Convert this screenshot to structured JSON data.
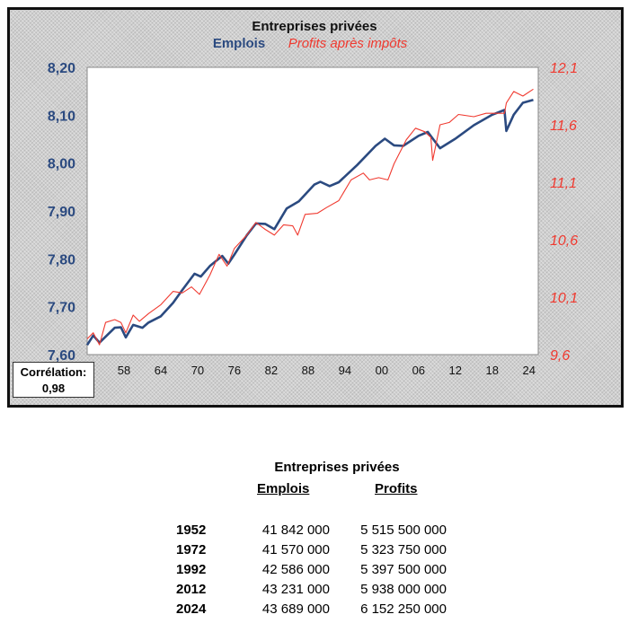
{
  "chart_data": {
    "type": "line",
    "title": "Entreprises privées",
    "legend": [
      "Emplois",
      "Profits après impôts"
    ],
    "colors": {
      "emplois": "#2b4a80",
      "profits": "#f03a30"
    },
    "x_ticks": [
      "58",
      "64",
      "70",
      "76",
      "82",
      "88",
      "94",
      "00",
      "06",
      "12",
      "18",
      "24"
    ],
    "x_tick_years": [
      1958,
      1964,
      1970,
      1976,
      1982,
      1988,
      1994,
      2000,
      2006,
      2012,
      2018,
      2024
    ],
    "xlim": [
      1952,
      2025.5
    ],
    "y_left": {
      "ticks": [
        "8,20",
        "8,10",
        "8,00",
        "7,90",
        "7,80",
        "7,70",
        "7,60"
      ],
      "values": [
        8.2,
        8.1,
        8.0,
        7.9,
        7.8,
        7.7,
        7.6
      ],
      "ylim": [
        7.6,
        8.2
      ]
    },
    "y_right": {
      "ticks": [
        "12,1",
        "11,6",
        "11,1",
        "10,6",
        "10,1",
        "9,6"
      ],
      "values": [
        12.1,
        11.6,
        11.1,
        10.6,
        10.1,
        9.6
      ],
      "ylim": [
        9.6,
        12.1
      ]
    },
    "series": [
      {
        "name": "Emplois",
        "axis": "left",
        "x": [
          1952,
          1953,
          1954,
          1956.5,
          1957.5,
          1958.3,
          1959.5,
          1961,
          1962,
          1964,
          1966,
          1967.5,
          1969.5,
          1970.5,
          1972,
          1974,
          1975,
          1976,
          1978,
          1979.5,
          1981,
          1982.5,
          1984.5,
          1986.5,
          1989,
          1990,
          1991.5,
          1993,
          1996,
          1999,
          2000.5,
          2002,
          2003.5,
          2006,
          2007.5,
          2008.5,
          2009.5,
          2012,
          2015,
          2018,
          2020,
          2020.3,
          2021.5,
          2023,
          2024.7
        ],
        "y": [
          7.62,
          7.64,
          7.625,
          7.656,
          7.657,
          7.636,
          7.662,
          7.656,
          7.667,
          7.68,
          7.708,
          7.735,
          7.769,
          7.763,
          7.785,
          7.806,
          7.79,
          7.809,
          7.849,
          7.874,
          7.873,
          7.862,
          7.905,
          7.92,
          7.955,
          7.961,
          7.952,
          7.96,
          7.996,
          8.036,
          8.051,
          8.037,
          8.036,
          8.057,
          8.065,
          8.048,
          8.031,
          8.051,
          8.079,
          8.101,
          8.111,
          8.067,
          8.101,
          8.126,
          8.132
        ]
      },
      {
        "name": "Profits après impôts",
        "axis": "right",
        "x": [
          1952,
          1953,
          1954,
          1955,
          1956.5,
          1957.5,
          1958.3,
          1959.5,
          1960.5,
          1962,
          1964,
          1966,
          1967.5,
          1969,
          1970.3,
          1972,
          1973.5,
          1974.8,
          1976,
          1978,
          1979.5,
          1981,
          1982.5,
          1984,
          1985.5,
          1986.3,
          1987.5,
          1989.5,
          1991,
          1993,
          1995,
          1997,
          1998,
          1999.5,
          2001,
          2002,
          2004,
          2005.5,
          2007,
          2008,
          2008.3,
          2009.5,
          2011,
          2012.5,
          2015,
          2017,
          2020,
          2020.3,
          2021.5,
          2023,
          2024.7
        ],
        "y": [
          9.737,
          9.79,
          9.685,
          9.88,
          9.905,
          9.88,
          9.79,
          9.944,
          9.89,
          9.957,
          10.034,
          10.15,
          10.137,
          10.189,
          10.124,
          10.292,
          10.473,
          10.37,
          10.525,
          10.64,
          10.75,
          10.69,
          10.64,
          10.73,
          10.72,
          10.64,
          10.82,
          10.83,
          10.88,
          10.94,
          11.12,
          11.18,
          11.12,
          11.14,
          11.12,
          11.26,
          11.47,
          11.57,
          11.54,
          11.49,
          11.29,
          11.6,
          11.62,
          11.69,
          11.67,
          11.7,
          11.7,
          11.79,
          11.89,
          11.85,
          11.91
        ]
      }
    ]
  },
  "correlation": {
    "label": "Corrélation:",
    "value": "0,98"
  },
  "table": {
    "title": "Entreprises privées",
    "headers": [
      "Emplois",
      "Profits"
    ],
    "rows": [
      {
        "year": "1952",
        "emplois": "41 842 000",
        "profits": "5 515 500 000"
      },
      {
        "year": "1972",
        "emplois": "41 570 000",
        "profits": "5 323 750 000"
      },
      {
        "year": "1992",
        "emplois": "42 586 000",
        "profits": "5 397 500 000"
      },
      {
        "year": "2012",
        "emplois": "43 231 000",
        "profits": "5 938 000 000"
      },
      {
        "year": "2024",
        "emplois": "43 689 000",
        "profits": "6 152 250 000"
      }
    ]
  }
}
